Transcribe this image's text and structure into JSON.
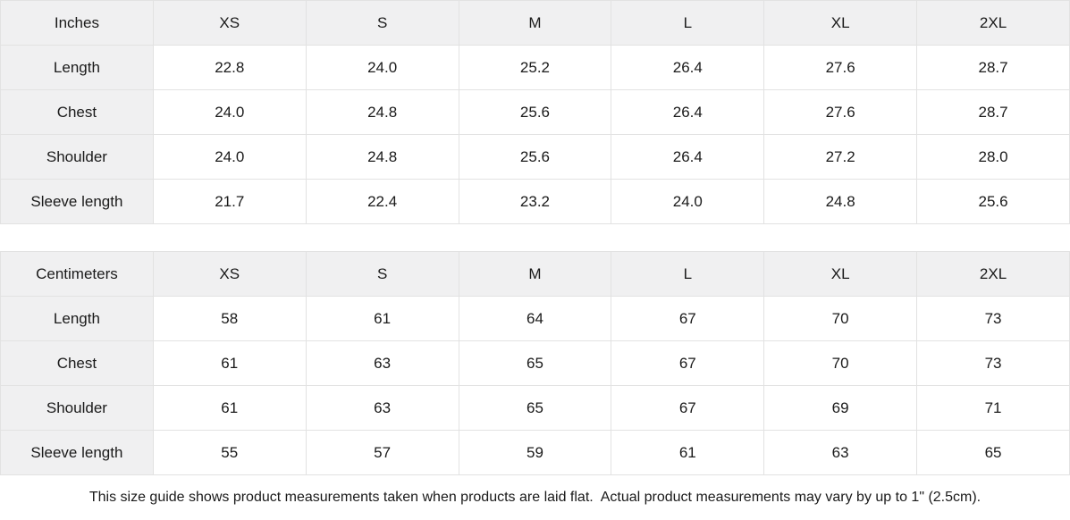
{
  "tables": [
    {
      "unit_label": "Inches",
      "sizes": [
        "XS",
        "S",
        "M",
        "L",
        "XL",
        "2XL"
      ],
      "rows": [
        {
          "label": "Length",
          "values": [
            "22.8",
            "24.0",
            "25.2",
            "26.4",
            "27.6",
            "28.7"
          ]
        },
        {
          "label": "Chest",
          "values": [
            "24.0",
            "24.8",
            "25.6",
            "26.4",
            "27.6",
            "28.7"
          ]
        },
        {
          "label": "Shoulder",
          "values": [
            "24.0",
            "24.8",
            "25.6",
            "26.4",
            "27.2",
            "28.0"
          ]
        },
        {
          "label": "Sleeve length",
          "values": [
            "21.7",
            "22.4",
            "23.2",
            "24.0",
            "24.8",
            "25.6"
          ]
        }
      ]
    },
    {
      "unit_label": "Centimeters",
      "sizes": [
        "XS",
        "S",
        "M",
        "L",
        "XL",
        "2XL"
      ],
      "rows": [
        {
          "label": "Length",
          "values": [
            "58",
            "61",
            "64",
            "67",
            "70",
            "73"
          ]
        },
        {
          "label": "Chest",
          "values": [
            "61",
            "63",
            "65",
            "67",
            "70",
            "73"
          ]
        },
        {
          "label": "Shoulder",
          "values": [
            "61",
            "63",
            "65",
            "67",
            "69",
            "71"
          ]
        },
        {
          "label": "Sleeve length",
          "values": [
            "55",
            "57",
            "59",
            "61",
            "63",
            "65"
          ]
        }
      ]
    }
  ],
  "footer": {
    "note": "This size guide shows product measurements taken when products are laid flat.  Actual product measurements may vary by up to 1\" (2.5cm)."
  },
  "colors": {
    "header_bg": "#f0f0f1",
    "border": "#e2e2e2",
    "text": "#1a1a1a",
    "cell_bg": "#ffffff"
  }
}
